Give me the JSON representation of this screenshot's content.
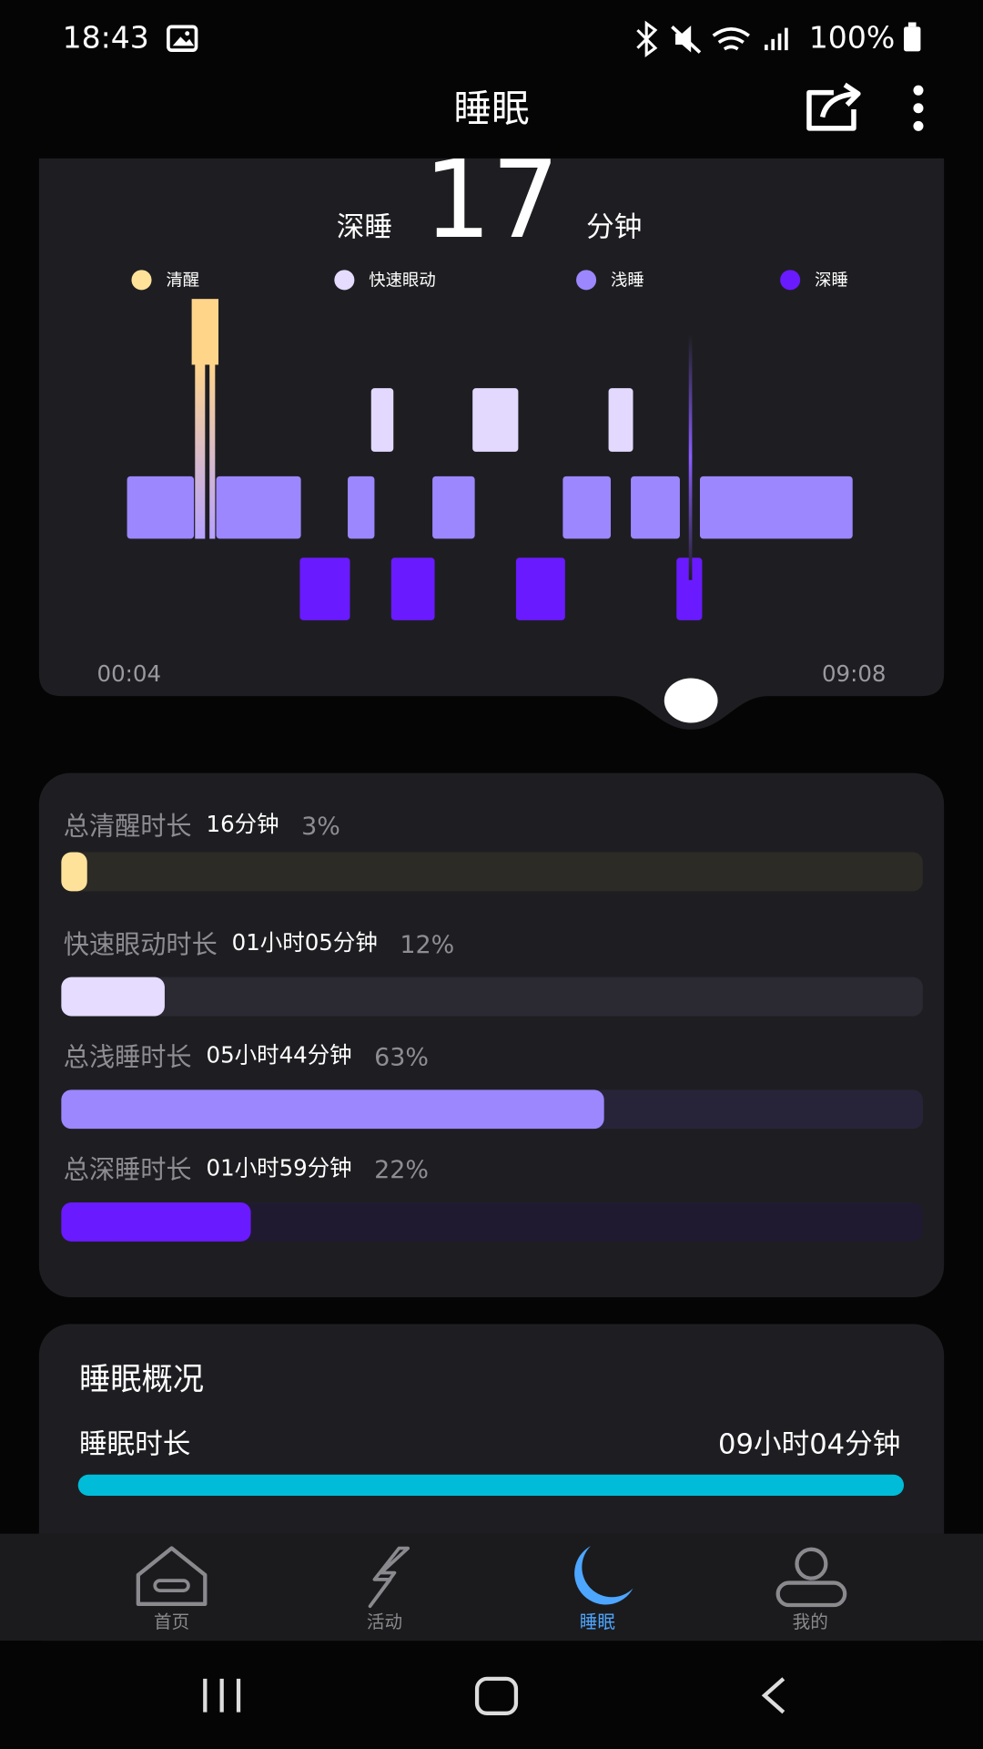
{
  "status_bar": {
    "time": "18:43",
    "battery": "100%"
  },
  "header": {
    "title": "睡眠"
  },
  "stage_chart": {
    "metric_label": "深睡",
    "metric_value": 17,
    "metric_unit": "分钟",
    "legend": [
      "清醒",
      "快速眼动",
      "浅睡",
      "深睡"
    ],
    "start_time": "00:04",
    "end_time": "09:08"
  },
  "durations": [
    {
      "label": "总清醒时长",
      "value": "16分钟",
      "percent": {
        "value": 3,
        "label": "3%"
      }
    },
    {
      "label": "快速眼动时长",
      "value": "01小时05分钟",
      "percent": {
        "value": 12,
        "label": "12%"
      }
    },
    {
      "label": "总浅睡时长",
      "value": "05小时44分钟",
      "percent": {
        "value": 63,
        "label": "63%"
      }
    },
    {
      "label": "总深睡时长",
      "value": "01小时59分钟",
      "percent": {
        "value": 22,
        "label": "22%"
      }
    }
  ],
  "overview": {
    "title": "睡眠概况",
    "rows": [
      {
        "label": "睡眠时长",
        "value": "09小时04分钟"
      }
    ]
  },
  "nav": [
    "首页",
    "活动",
    "睡眠",
    "我的"
  ]
}
